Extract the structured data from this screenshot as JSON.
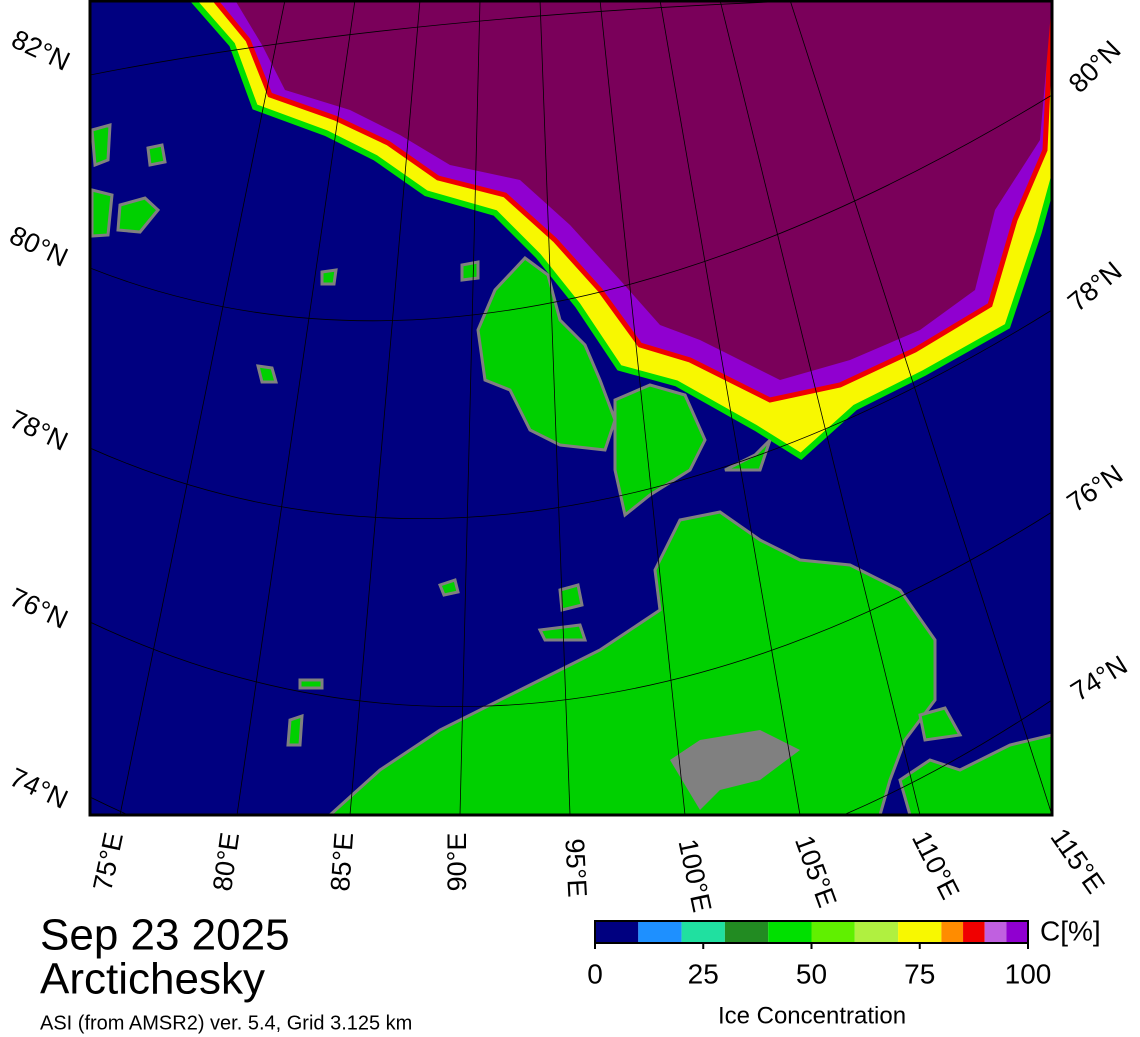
{
  "map": {
    "lat_labels_left": [
      "82°N",
      "80°N",
      "78°N",
      "76°N",
      "74°N"
    ],
    "lat_labels_right": [
      "80°N",
      "78°N",
      "76°N",
      "74°N"
    ],
    "lon_labels": [
      "75°E",
      "80°E",
      "85°E",
      "90°E",
      "95°E",
      "100°E",
      "105°E",
      "110°E",
      "115°E"
    ]
  },
  "caption": {
    "date": "Sep 23 2025",
    "region": "Arctichesky",
    "source": "ASI (from AMSR2) ver. 5.4,  Grid 3.125 km"
  },
  "colorbar": {
    "unit": "C[%]",
    "title": "Ice Concentration",
    "lim": [
      0,
      100
    ],
    "ticks": [
      0,
      25,
      50,
      75,
      100
    ],
    "bounds": [
      0,
      10,
      20,
      30,
      40,
      50,
      60,
      70,
      80,
      85,
      90,
      95,
      100
    ],
    "colors": [
      "#000080",
      "#1e90ff",
      "#20e0a0",
      "#228b22",
      "#00e000",
      "#60f000",
      "#b0f040",
      "#f8f800",
      "#ff8c00",
      "#f00000",
      "#c060e0",
      "#9000d0"
    ]
  }
}
